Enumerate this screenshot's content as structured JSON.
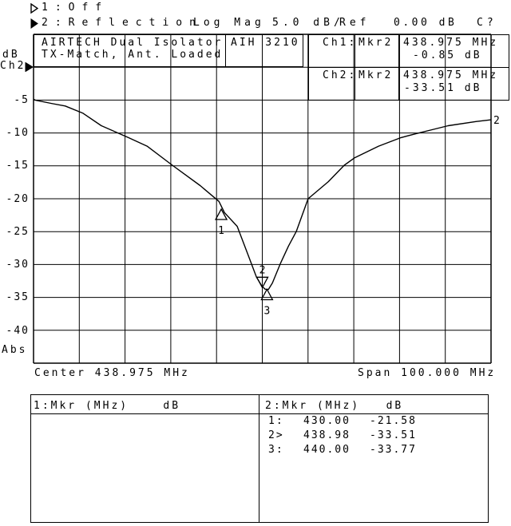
{
  "top_bar": {
    "ch1": {
      "label": "1:Off"
    },
    "ch2": {
      "label": "2:Reflection",
      "format": "Log Mag",
      "scale": "5.0 dB/",
      "ref_word": "Ref",
      "ref_value": "0.00 dB",
      "status": "C?"
    }
  },
  "title_box": {
    "line1": "AIRTECH Dual Isolator",
    "model": "AIH 3210",
    "line2": "TX-Match, Ant. Loaded"
  },
  "readout": {
    "ch1": {
      "label": "Ch1:",
      "marker": "Mkr2",
      "freq": "438.975 MHz",
      "value": "-0.85 dB"
    },
    "ch2": {
      "label": "Ch2:",
      "marker": "Mkr2",
      "freq": "438.975 MHz",
      "value": "-33.51 dB"
    }
  },
  "y_axis": {
    "unit": "dB",
    "channel": "Ch2",
    "labels": [
      "-5",
      "-10",
      "-15",
      "-20",
      "-25",
      "-30",
      "-35",
      "-40"
    ],
    "bottom_label": "Abs"
  },
  "x_axis": {
    "center": "Center 438.975 MHz",
    "span": "Span 100.000 MHz"
  },
  "marker_table": {
    "left": {
      "header": "1:Mkr (MHz)    dB"
    },
    "right": {
      "header": "2:Mkr (MHz)   dB",
      "rows": [
        {
          "id": "1:",
          "freq": "430.00",
          "db": "-21.58"
        },
        {
          "id": "2>",
          "freq": "438.98",
          "db": "-33.51"
        },
        {
          "id": "3:",
          "freq": "440.00",
          "db": "-33.77"
        }
      ]
    }
  },
  "chart_data": {
    "type": "line",
    "title": "AIRTECH Dual Isolator AIH 3210 — TX-Match, Ant. Loaded",
    "xlabel": "Frequency (MHz), Center 438.975 MHz, Span 100.000 MHz",
    "ylabel": "Reflection Log Mag (dB), 5.0 dB/div, Ref 0.00 dB",
    "xlim": [
      388.975,
      488.975
    ],
    "ylim": [
      -45,
      5
    ],
    "grid": true,
    "divisions": 10,
    "ref_db": 0,
    "db_per_div": 5,
    "series": [
      {
        "name": "Ch2 Reflection Log Mag",
        "end_label": "2",
        "points": [
          [
            388.98,
            -4.85
          ],
          [
            389.3,
            -5.0
          ],
          [
            392.8,
            -5.5
          ],
          [
            395.9,
            -5.9
          ],
          [
            399.8,
            -7.0
          ],
          [
            403.8,
            -8.9
          ],
          [
            409.7,
            -10.7
          ],
          [
            413.8,
            -12.0
          ],
          [
            419.3,
            -14.9
          ],
          [
            425.4,
            -18.0
          ],
          [
            429.5,
            -20.4
          ],
          [
            430.7,
            -22.1
          ],
          [
            433.5,
            -24.2
          ],
          [
            435.9,
            -28.6
          ],
          [
            437.7,
            -31.9
          ],
          [
            438.9,
            -33.3
          ],
          [
            439.6,
            -33.75
          ],
          [
            440.3,
            -33.8
          ],
          [
            441.2,
            -32.8
          ],
          [
            442.9,
            -29.9
          ],
          [
            444.7,
            -27.2
          ],
          [
            446.4,
            -25.0
          ],
          [
            449.0,
            -20.0
          ],
          [
            453.4,
            -17.4
          ],
          [
            456.9,
            -14.9
          ],
          [
            459.1,
            -13.8
          ],
          [
            464.4,
            -12.0
          ],
          [
            469.3,
            -10.7
          ],
          [
            472.6,
            -10.1
          ],
          [
            476.1,
            -9.5
          ],
          [
            479.6,
            -8.9
          ],
          [
            485.8,
            -8.25
          ],
          [
            489.0,
            -8.0
          ]
        ]
      }
    ],
    "markers": [
      {
        "n": "1",
        "f": 430.0,
        "db": -21.58,
        "style": "up"
      },
      {
        "n": "2",
        "f": 438.98,
        "db": -33.51,
        "style": "down"
      },
      {
        "n": "3",
        "f": 440.0,
        "db": -33.77,
        "style": "up"
      }
    ]
  }
}
